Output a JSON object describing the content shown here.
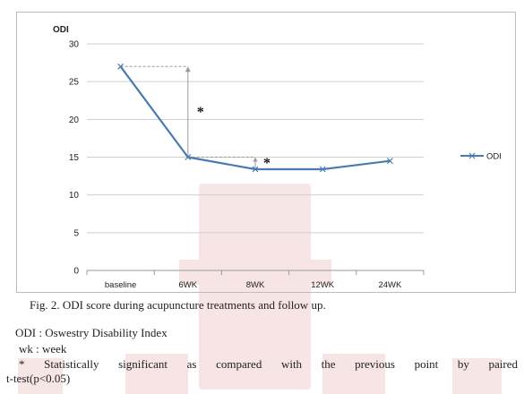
{
  "chart_data": {
    "type": "line",
    "title": "ODI",
    "categories": [
      "baseline",
      "6WK",
      "8WK",
      "12WK",
      "24WK"
    ],
    "y_ticks": [
      0,
      5,
      10,
      15,
      20,
      25,
      30
    ],
    "ylim": [
      0,
      30
    ],
    "grid": true,
    "legend": "right",
    "series": [
      {
        "name": "ODI",
        "values": [
          27,
          15,
          13.4,
          13.4,
          14.5
        ]
      }
    ],
    "annotations": [
      {
        "text": "*",
        "between": [
          "baseline",
          "6WK"
        ]
      },
      {
        "text": "*",
        "between": [
          "6WK",
          "8WK"
        ]
      }
    ],
    "colors": {
      "line": "#4a7ab0",
      "grid": "#cfcfcf",
      "dashed": "#9a9a9a"
    }
  },
  "caption": "Fig. 2. ODI score during acupuncture treatments and follow up.",
  "notes": {
    "odi": "ODI : Oswestry Disability Index",
    "wk": "wk : week",
    "sig_words": [
      "*",
      "Statistically",
      "significant",
      "as",
      "compared",
      "with",
      "the",
      "previous",
      "point",
      "by",
      "paired"
    ],
    "sig_line2": "t-test(p<0.05)"
  },
  "watermark": {
    "color": "#c43a3a"
  }
}
